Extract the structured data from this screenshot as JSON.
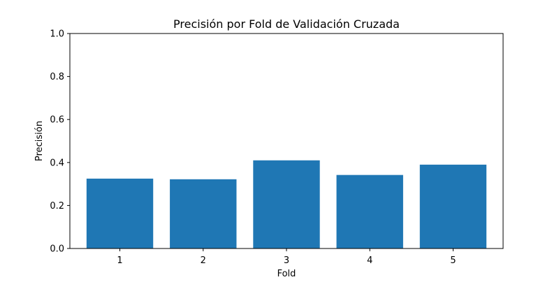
{
  "chart_data": {
    "type": "bar",
    "title": "Precisión por Fold de Validación Cruzada",
    "xlabel": "Fold",
    "ylabel": "Precisión",
    "categories": [
      "1",
      "2",
      "3",
      "4",
      "5"
    ],
    "values": [
      0.325,
      0.322,
      0.41,
      0.342,
      0.39
    ],
    "ylim": [
      0,
      1.0
    ],
    "yticks": [
      "0.0",
      "0.2",
      "0.4",
      "0.6",
      "0.8",
      "1.0"
    ],
    "grid": false,
    "bar_color": "#1f77b4"
  }
}
